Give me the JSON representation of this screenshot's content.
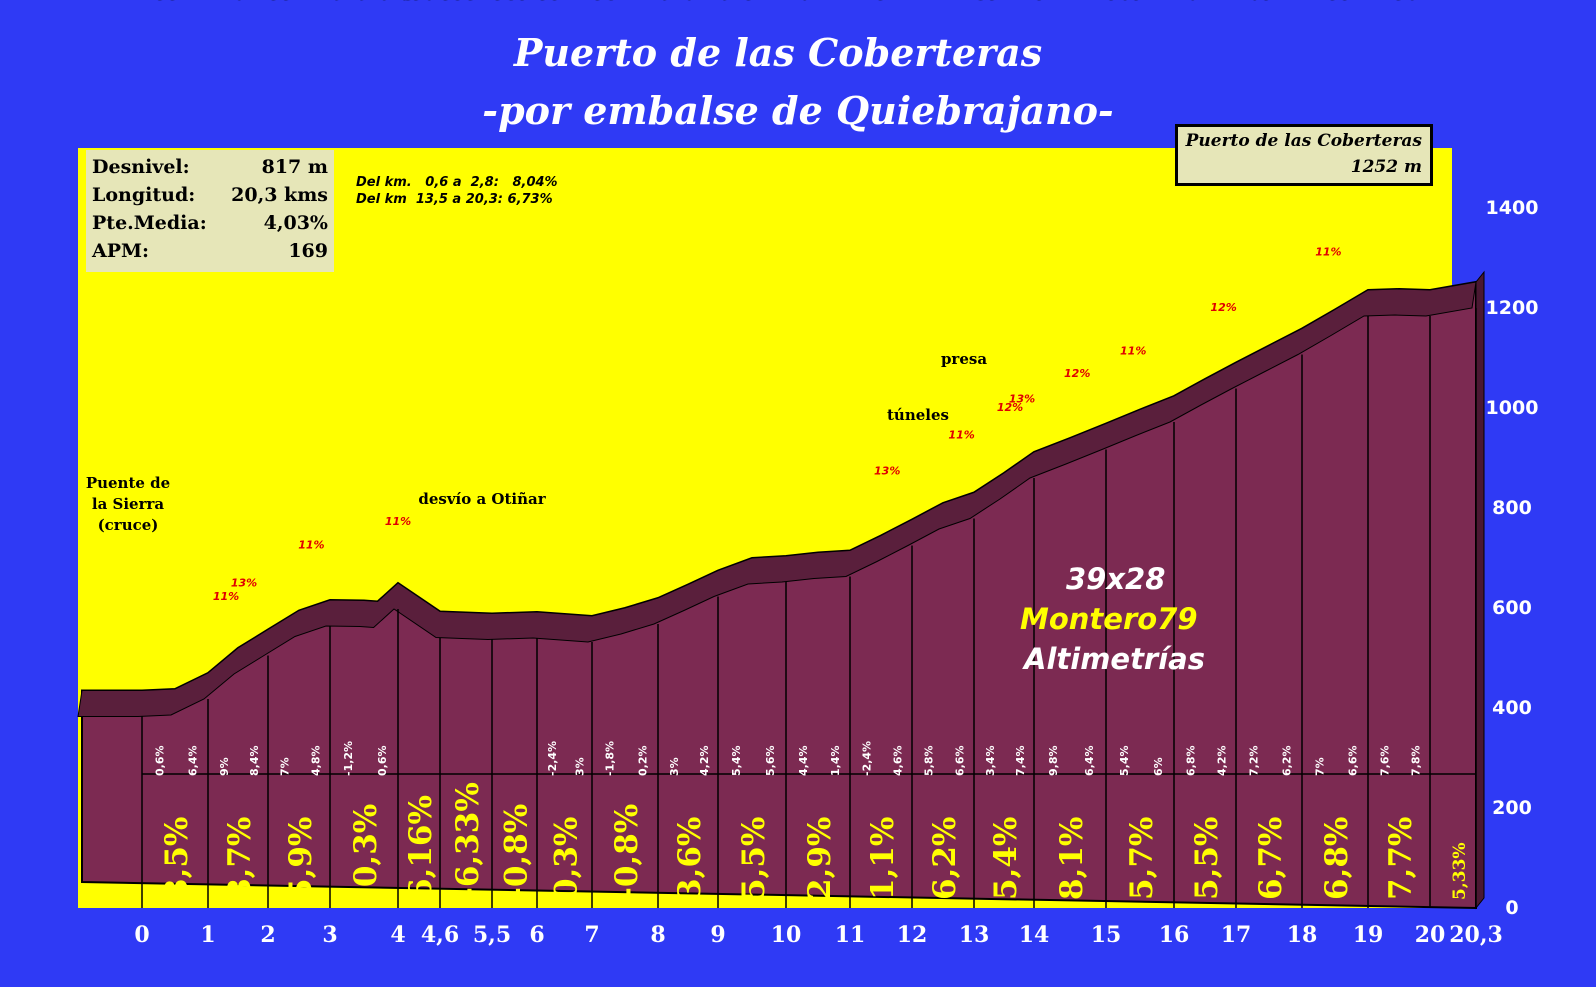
{
  "title": "Puerto de las Coberteras",
  "subtitle": "-por embalse de Quiebrajano-",
  "stats": [
    {
      "label": "Desnivel:",
      "value": "817 m"
    },
    {
      "label": "Longitud:",
      "value": "20,3 kms"
    },
    {
      "label": "Pte.Media:",
      "value": "4,03%"
    },
    {
      "label": "APM:",
      "value": "169"
    }
  ],
  "sections": [
    "Del km.   0,6 a  2,8:   8,04%",
    "Del km  13,5 a 20,3: 6,73%"
  ],
  "summit": {
    "name": "Puerto de las Coberteras",
    "altitude": "1252 m"
  },
  "credits": {
    "ratio": "39x28",
    "author": "Montero79",
    "site": "Altimetrías"
  },
  "colors": {
    "background": "#2f3af5",
    "sky": "#ffff00",
    "profile": "#7c2a52",
    "profile_top": "#5a1f3c",
    "text_yellow": "#ffff00",
    "ramp_red": "#e00000"
  },
  "chart_data": {
    "type": "area",
    "title": "Puerto de las Coberteras",
    "subtitle": "-por embalse de Quiebrajano-",
    "ylim": [
      0,
      1500
    ],
    "y_ticks": [
      "0",
      "200",
      "400",
      "600",
      "800",
      "1000",
      "1200",
      "1400"
    ],
    "x_ticks": [
      "0",
      "1",
      "2",
      "3",
      "4",
      "4,6",
      "5,5",
      "6",
      "7",
      "8",
      "9",
      "10",
      "11",
      "12",
      "13",
      "14",
      "15",
      "16",
      "17",
      "18",
      "19",
      "20",
      "20,3"
    ],
    "grid": false,
    "profile": [
      {
        "km": 0,
        "alt": 435
      },
      {
        "km": 0.5,
        "alt": 438
      },
      {
        "km": 1,
        "alt": 470
      },
      {
        "km": 1.5,
        "alt": 520
      },
      {
        "km": 2,
        "alt": 557
      },
      {
        "km": 2.5,
        "alt": 595
      },
      {
        "km": 3,
        "alt": 616
      },
      {
        "km": 3.5,
        "alt": 615
      },
      {
        "km": 3.7,
        "alt": 613
      },
      {
        "km": 4,
        "alt": 650
      },
      {
        "km": 4.6,
        "alt": 593
      },
      {
        "km": 5.5,
        "alt": 589
      },
      {
        "km": 6,
        "alt": 592
      },
      {
        "km": 6.5,
        "alt": 588
      },
      {
        "km": 7,
        "alt": 584
      },
      {
        "km": 7.5,
        "alt": 600
      },
      {
        "km": 8,
        "alt": 620
      },
      {
        "km": 8.5,
        "alt": 647
      },
      {
        "km": 9,
        "alt": 675
      },
      {
        "km": 9.5,
        "alt": 700
      },
      {
        "km": 10,
        "alt": 704
      },
      {
        "km": 10.5,
        "alt": 711
      },
      {
        "km": 11,
        "alt": 715
      },
      {
        "km": 11.5,
        "alt": 745
      },
      {
        "km": 12,
        "alt": 777
      },
      {
        "km": 12.5,
        "alt": 810
      },
      {
        "km": 13,
        "alt": 831
      },
      {
        "km": 13.5,
        "alt": 870
      },
      {
        "km": 14,
        "alt": 912
      },
      {
        "km": 14.5,
        "alt": 940
      },
      {
        "km": 15,
        "alt": 969
      },
      {
        "km": 15.5,
        "alt": 997
      },
      {
        "km": 16,
        "alt": 1024
      },
      {
        "km": 16.5,
        "alt": 1058
      },
      {
        "km": 17,
        "alt": 1091
      },
      {
        "km": 17.5,
        "alt": 1125
      },
      {
        "km": 18,
        "alt": 1159
      },
      {
        "km": 18.5,
        "alt": 1197
      },
      {
        "km": 19,
        "alt": 1236
      },
      {
        "km": 19.5,
        "alt": 1238
      },
      {
        "km": 20,
        "alt": 1236
      },
      {
        "km": 20.3,
        "alt": 1252
      }
    ],
    "altitude_labels": [
      {
        "km": 0,
        "text": "435"
      },
      {
        "km": 1,
        "text": "470"
      },
      {
        "km": 2,
        "text": "557"
      },
      {
        "km": 3,
        "text": "616"
      },
      {
        "km": 3.7,
        "text": "613"
      },
      {
        "km": 4,
        "text": "650"
      },
      {
        "km": 4.6,
        "text": "593"
      },
      {
        "km": 5.5,
        "text": "589"
      },
      {
        "km": 6,
        "text": "592"
      },
      {
        "km": 7,
        "text": "584"
      },
      {
        "km": 8,
        "text": "620"
      },
      {
        "km": 9,
        "text": "675"
      },
      {
        "km": 10,
        "text": "704"
      },
      {
        "km": 11,
        "text": "715"
      },
      {
        "km": 12,
        "text": "777"
      },
      {
        "km": 13,
        "text": "831"
      },
      {
        "km": 14,
        "text": "912"
      },
      {
        "km": 15,
        "text": "969"
      },
      {
        "km": 16,
        "text": "1024"
      },
      {
        "km": 17,
        "text": "1091"
      },
      {
        "km": 18,
        "text": "1159"
      },
      {
        "km": 19,
        "text": "1236"
      }
    ],
    "half_km_gradients": [
      "0,6%",
      "6,4%",
      "9%",
      "8,4%",
      "7%",
      "4,8%",
      "-1,2%",
      "0,6%",
      "-2,4%",
      "3%",
      "-1,8%",
      "0,2%",
      "3%",
      "4,2%",
      "5,4%",
      "5,6%",
      "4,4%",
      "1,4%",
      "-2,4%",
      "4,6%",
      "5,8%",
      "6,6%",
      "3,4%",
      "7,4%",
      "9,8%",
      "6,4%",
      "5,4%",
      "6%",
      "6,8%",
      "4,2%",
      "7,2%",
      "6,2%",
      "7%",
      "6,6%",
      "7,6%",
      "7,8%"
    ],
    "km_gradients": [
      "3,5%",
      "8,7%",
      "5,9%",
      "-0,3%",
      "6,16%",
      "-6,33%",
      "-0,8%",
      "0,3%",
      "-0,8%",
      "3,6%",
      "5,5%",
      "2,9%",
      "1,1%",
      "6,2%",
      "5,4%",
      "8,1%",
      "5,7%",
      "5,5%",
      "6,7%",
      "6,8%",
      "7,7%",
      "5,33%"
    ],
    "ramps": [
      "11%",
      "13%",
      "11%",
      "11%",
      "13%",
      "11%",
      "12%",
      "13%",
      "12%",
      "11%",
      "12%",
      "11%"
    ],
    "places": [
      "Puente de la Sierra (cruce)",
      "desvío a Otiñar",
      "túneles",
      "presa"
    ]
  }
}
